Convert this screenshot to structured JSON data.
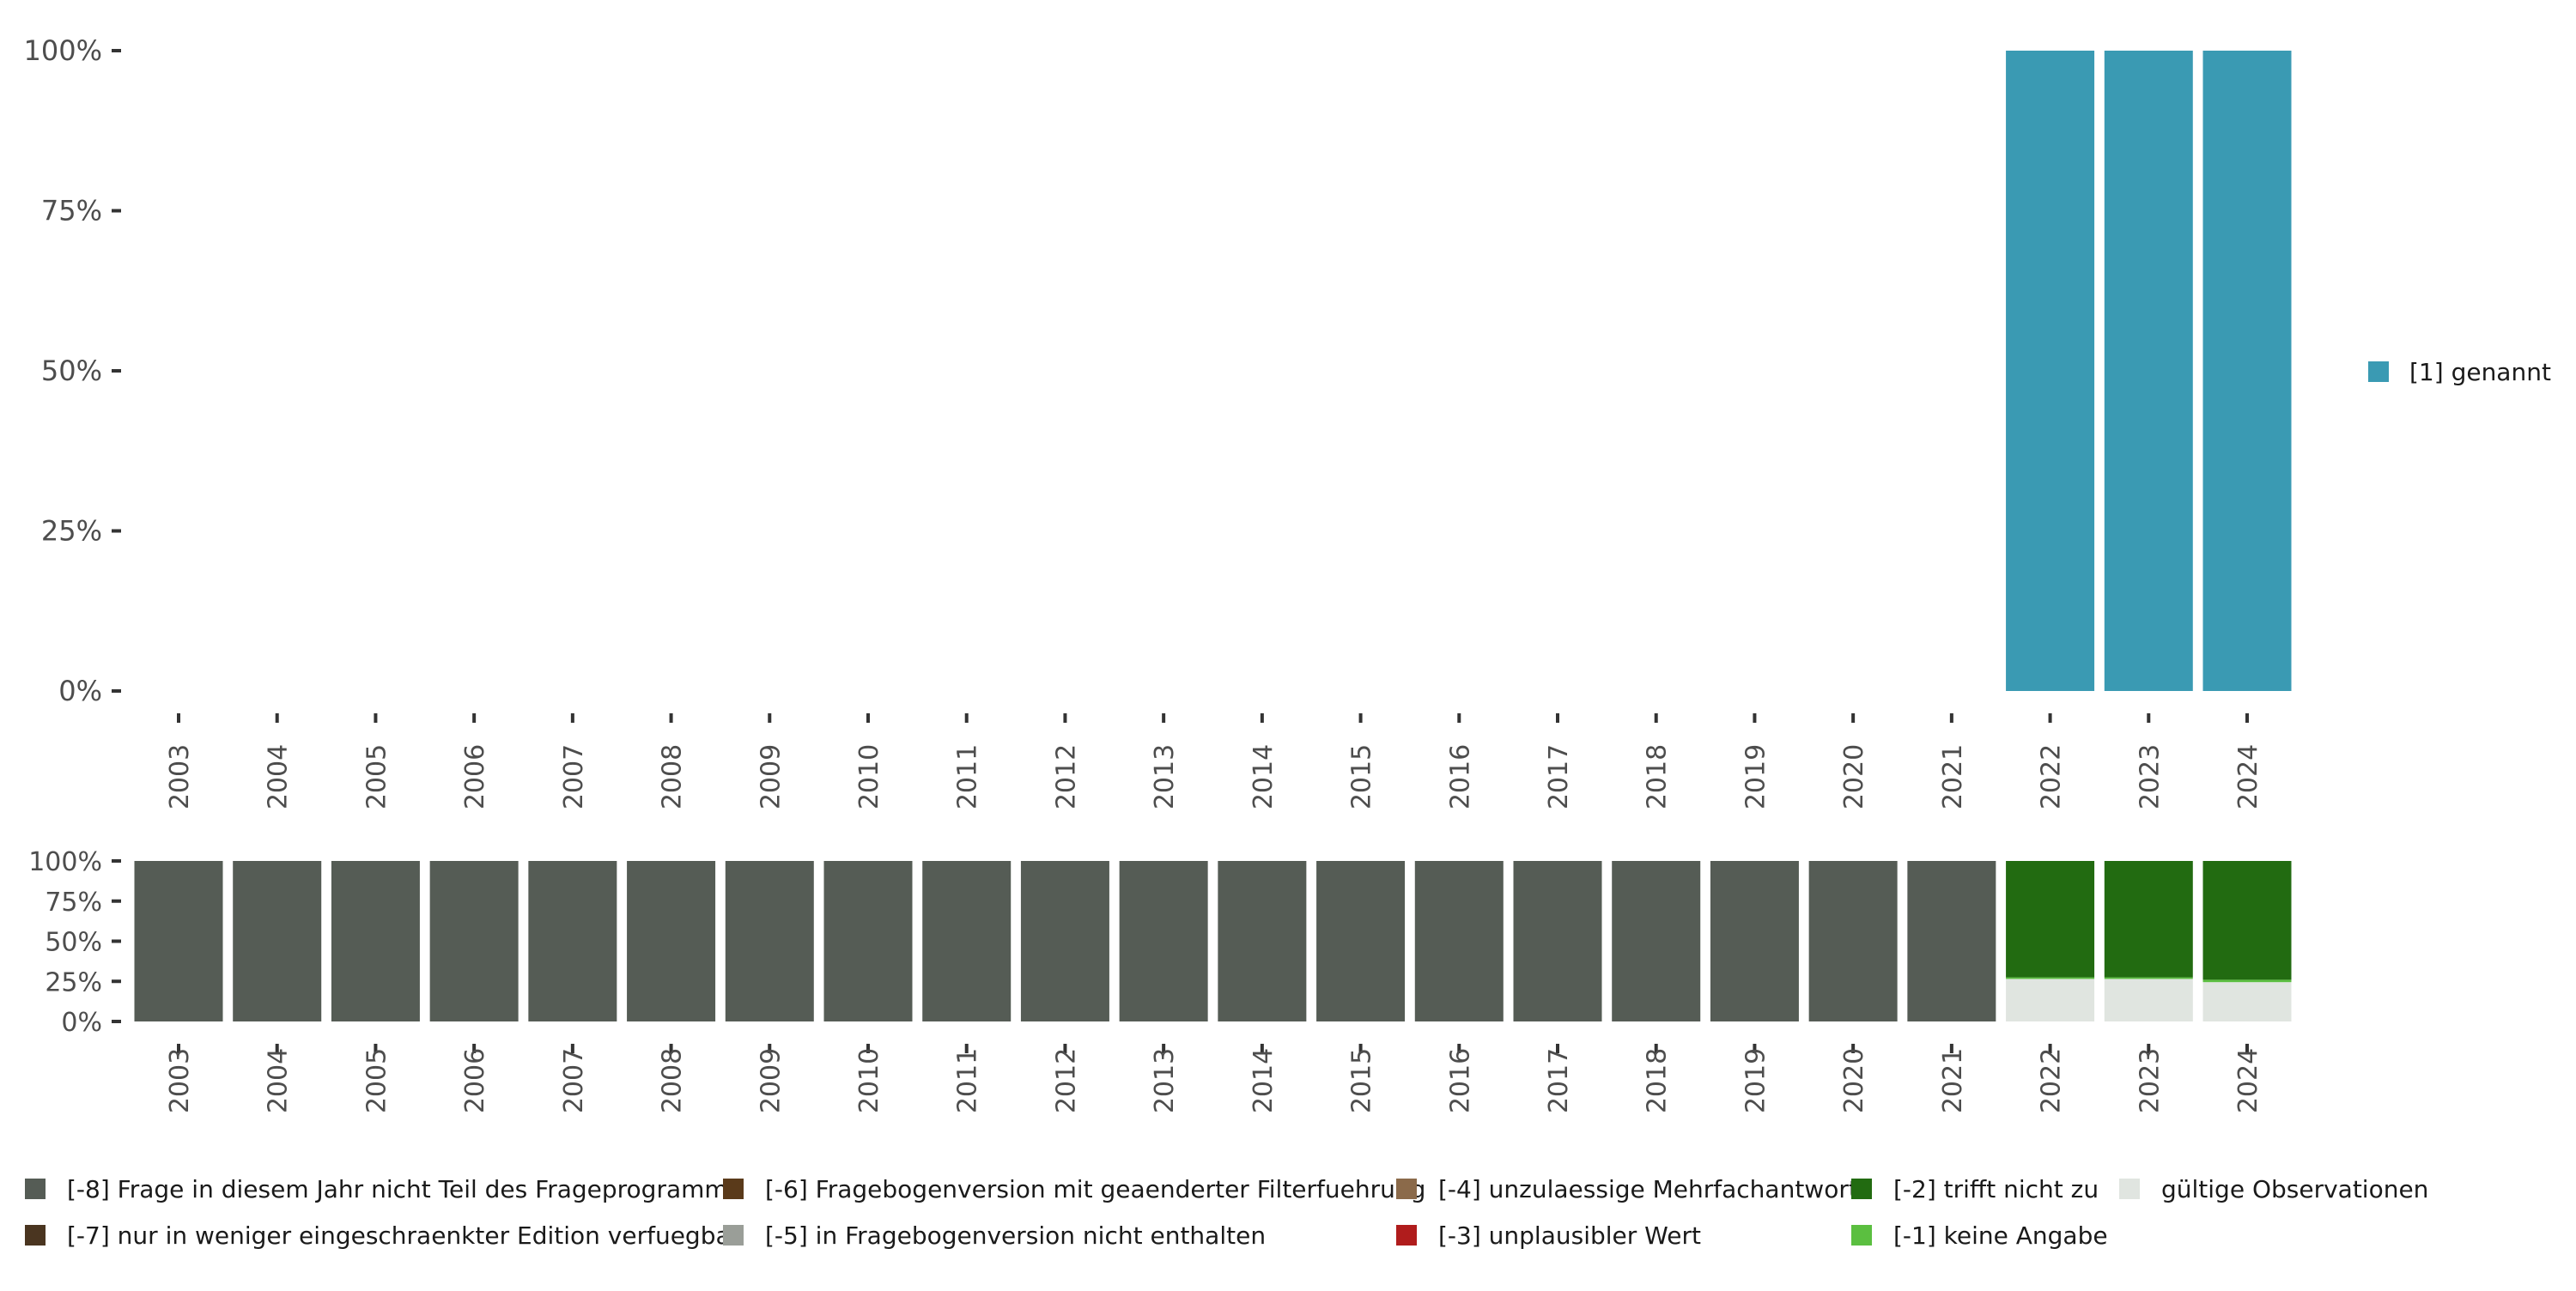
{
  "chart_data": [
    {
      "type": "bar",
      "stacked": true,
      "categories": [
        "2003",
        "2004",
        "2005",
        "2006",
        "2007",
        "2008",
        "2009",
        "2010",
        "2011",
        "2012",
        "2013",
        "2014",
        "2015",
        "2016",
        "2017",
        "2018",
        "2019",
        "2020",
        "2021",
        "2022",
        "2023",
        "2024"
      ],
      "ylim": [
        0,
        1
      ],
      "yticks": [
        "0%",
        "25%",
        "50%",
        "75%",
        "100%"
      ],
      "series": [
        {
          "name": "[1] genannt",
          "color": "#3a9ab3",
          "values": [
            0,
            0,
            0,
            0,
            0,
            0,
            0,
            0,
            0,
            0,
            0,
            0,
            0,
            0,
            0,
            0,
            0,
            0,
            0,
            1,
            1,
            1
          ]
        }
      ],
      "legend_position": "right"
    },
    {
      "type": "bar",
      "stacked": true,
      "categories": [
        "2003",
        "2004",
        "2005",
        "2006",
        "2007",
        "2008",
        "2009",
        "2010",
        "2011",
        "2012",
        "2013",
        "2014",
        "2015",
        "2016",
        "2017",
        "2018",
        "2019",
        "2020",
        "2021",
        "2022",
        "2023",
        "2024"
      ],
      "ylim": [
        0,
        1
      ],
      "yticks": [
        "0%",
        "25%",
        "50%",
        "75%",
        "100%"
      ],
      "series": [
        {
          "name": "gültige Observationen",
          "color": "#e0e5e0",
          "values": [
            0,
            0,
            0,
            0,
            0,
            0,
            0,
            0,
            0,
            0,
            0,
            0,
            0,
            0,
            0,
            0,
            0,
            0,
            0,
            0.265,
            0.265,
            0.245
          ]
        },
        {
          "name": "[-1] keine Angabe",
          "color": "#5bbf40",
          "values": [
            0,
            0,
            0,
            0,
            0,
            0,
            0,
            0,
            0,
            0,
            0,
            0,
            0,
            0,
            0,
            0,
            0,
            0,
            0,
            0.01,
            0.01,
            0.015
          ]
        },
        {
          "name": "[-2] trifft nicht zu",
          "color": "#226b11",
          "values": [
            0,
            0,
            0,
            0,
            0,
            0,
            0,
            0,
            0,
            0,
            0,
            0,
            0,
            0,
            0,
            0,
            0,
            0,
            0,
            0.725,
            0.725,
            0.74
          ]
        },
        {
          "name": "[-3] unplausibler Wert",
          "color": "#b01c1c",
          "values": [
            0,
            0,
            0,
            0,
            0,
            0,
            0,
            0,
            0,
            0,
            0,
            0,
            0,
            0,
            0,
            0,
            0,
            0,
            0,
            0,
            0,
            0
          ]
        },
        {
          "name": "[-4] unzulaessige Mehrfachantwort",
          "color": "#8b6a4a",
          "values": [
            0,
            0,
            0,
            0,
            0,
            0,
            0,
            0,
            0,
            0,
            0,
            0,
            0,
            0,
            0,
            0,
            0,
            0,
            0,
            0,
            0,
            0
          ]
        },
        {
          "name": "[-5] in Fragebogenversion nicht enthalten",
          "color": "#9a9e98",
          "values": [
            0,
            0,
            0,
            0,
            0,
            0,
            0,
            0,
            0,
            0,
            0,
            0,
            0,
            0,
            0,
            0,
            0,
            0,
            0,
            0,
            0,
            0
          ]
        },
        {
          "name": "[-6] Fragebogenversion mit geaenderter Filterfuehrung",
          "color": "#5a3a1a",
          "values": [
            0,
            0,
            0,
            0,
            0,
            0,
            0,
            0,
            0,
            0,
            0,
            0,
            0,
            0,
            0,
            0,
            0,
            0,
            0,
            0,
            0,
            0
          ]
        },
        {
          "name": "[-7] nur in weniger eingeschraenkter Edition verfuegbar",
          "color": "#4a3520",
          "values": [
            0,
            0,
            0,
            0,
            0,
            0,
            0,
            0,
            0,
            0,
            0,
            0,
            0,
            0,
            0,
            0,
            0,
            0,
            0,
            0,
            0,
            0
          ]
        },
        {
          "name": "[-8] Frage in diesem Jahr nicht Teil des Frageprogramms",
          "color": "#555c55",
          "values": [
            1,
            1,
            1,
            1,
            1,
            1,
            1,
            1,
            1,
            1,
            1,
            1,
            1,
            1,
            1,
            1,
            1,
            1,
            1,
            0,
            0,
            0
          ]
        }
      ],
      "legend_position": "bottom",
      "legend_order": [
        "[-8] Frage in diesem Jahr nicht Teil des Frageprogramms",
        "[-7] nur in weniger eingeschraenkter Edition verfuegbar",
        "[-6] Fragebogenversion mit geaenderter Filterfuehrung",
        "[-5] in Fragebogenversion nicht enthalten",
        "[-4] unzulaessige Mehrfachantwort",
        "[-3] unplausibler Wert",
        "[-2] trifft nicht zu",
        "[-1] keine Angabe",
        "gültige Observationen"
      ]
    }
  ]
}
